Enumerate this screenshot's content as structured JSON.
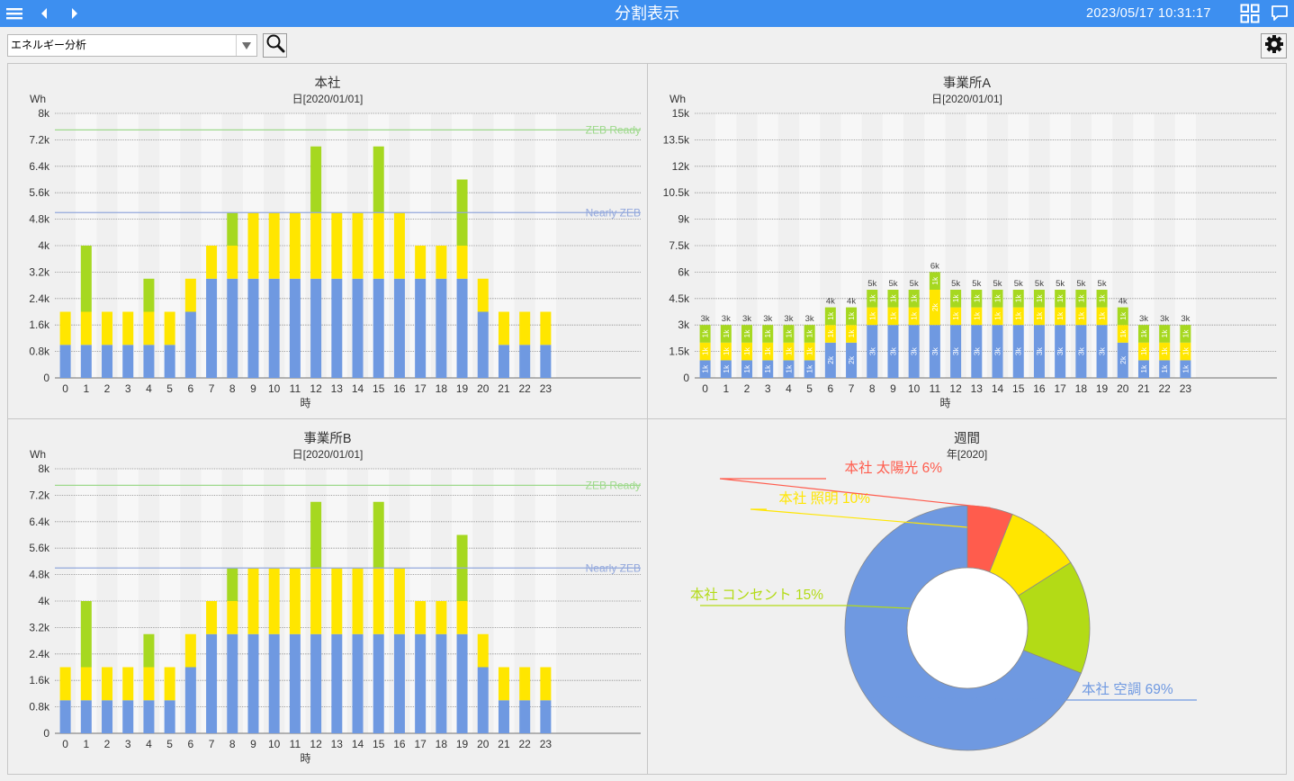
{
  "header": {
    "title": "分割表示",
    "datetime": "2023/05/17 10:31:17"
  },
  "toolbar": {
    "analysis_select_value": "エネルギー分析"
  },
  "icons": {
    "menu": "menu-icon",
    "prev": "chevron-left-icon",
    "next": "chevron-right-icon",
    "layout": "grid-layout-icon",
    "comment": "comment-icon",
    "search": "search-icon",
    "settings": "gear-icon",
    "dropdown": "caret-down-icon"
  },
  "colors": {
    "header_bg": "#3d8ff0",
    "blue": "#6f99e1",
    "yellow": "#ffe600",
    "green": "#a6d820",
    "red": "#ff5c4d",
    "zeb_ready": "#9ed98c",
    "nearly_zeb": "#93a8dc"
  },
  "panels": {
    "honsha": {
      "title": "本社",
      "subtitle": "日[2020/01/01]"
    },
    "office_a": {
      "title": "事業所A",
      "subtitle": "日[2020/01/01]"
    },
    "office_b": {
      "title": "事業所B",
      "subtitle": "日[2020/01/01]"
    },
    "weekly": {
      "title": "週間",
      "subtitle": "年[2020]"
    }
  },
  "chart_data": [
    {
      "id": "honsha",
      "type": "bar",
      "stacked": true,
      "title": "本社",
      "subtitle": "日[2020/01/01]",
      "ylabel": "Wh",
      "xlabel": "時",
      "categories": [
        "0",
        "1",
        "2",
        "3",
        "4",
        "5",
        "6",
        "7",
        "8",
        "9",
        "10",
        "11",
        "12",
        "13",
        "14",
        "15",
        "16",
        "17",
        "18",
        "19",
        "20",
        "21",
        "22",
        "23"
      ],
      "y_ticks": [
        "0",
        "0.8k",
        "1.6k",
        "2.4k",
        "3.2k",
        "4k",
        "4.8k",
        "5.6k",
        "6.4k",
        "7.2k",
        "8k"
      ],
      "ylim": [
        0,
        8000
      ],
      "series": [
        {
          "values": [
            1000,
            1000,
            1000,
            1000,
            1000,
            1000,
            2000,
            3000,
            3000,
            3000,
            3000,
            3000,
            3000,
            3000,
            3000,
            3000,
            3000,
            3000,
            3000,
            3000,
            2000,
            1000,
            1000,
            1000
          ]
        },
        {
          "values": [
            1000,
            1000,
            1000,
            1000,
            1000,
            1000,
            1000,
            1000,
            1000,
            2000,
            2000,
            2000,
            2000,
            2000,
            2000,
            2000,
            2000,
            1000,
            1000,
            1000,
            1000,
            1000,
            1000,
            1000
          ]
        },
        {
          "values": [
            0,
            2000,
            0,
            0,
            1000,
            0,
            0,
            0,
            1000,
            0,
            0,
            0,
            2000,
            0,
            0,
            2000,
            0,
            0,
            0,
            2000,
            0,
            0,
            0,
            0
          ]
        }
      ],
      "reference_lines": [
        {
          "label": "ZEB Ready",
          "value": 7500
        },
        {
          "label": "Nearly ZEB",
          "value": 5000
        }
      ],
      "grid": true
    },
    {
      "id": "office_a",
      "type": "bar",
      "stacked": true,
      "title": "事業所A",
      "subtitle": "日[2020/01/01]",
      "ylabel": "Wh",
      "xlabel": "時",
      "categories": [
        "0",
        "1",
        "2",
        "3",
        "4",
        "5",
        "6",
        "7",
        "8",
        "9",
        "10",
        "11",
        "12",
        "13",
        "14",
        "15",
        "16",
        "17",
        "18",
        "19",
        "20",
        "21",
        "22",
        "23"
      ],
      "y_ticks": [
        "0",
        "1.5k",
        "3k",
        "4.5k",
        "6k",
        "7.5k",
        "9k",
        "10.5k",
        "12k",
        "13.5k",
        "15k"
      ],
      "ylim": [
        0,
        15000
      ],
      "series": [
        {
          "values": [
            1000,
            1000,
            1000,
            1000,
            1000,
            1000,
            2000,
            2000,
            3000,
            3000,
            3000,
            3000,
            3000,
            3000,
            3000,
            3000,
            3000,
            3000,
            3000,
            3000,
            2000,
            1000,
            1000,
            1000
          ],
          "labels": [
            "1k",
            "1k",
            "1k",
            "1k",
            "1k",
            "1k",
            "2k",
            "2k",
            "3k",
            "3k",
            "3k",
            "3k",
            "3k",
            "3k",
            "3k",
            "3k",
            "3k",
            "3k",
            "3k",
            "3k",
            "2k",
            "1k",
            "1k",
            "1k"
          ]
        },
        {
          "values": [
            1000,
            1000,
            1000,
            1000,
            1000,
            1000,
            1000,
            1000,
            1000,
            1000,
            1000,
            2000,
            1000,
            1000,
            1000,
            1000,
            1000,
            1000,
            1000,
            1000,
            1000,
            1000,
            1000,
            1000
          ],
          "labels": [
            "1k",
            "1k",
            "1k",
            "1k",
            "1k",
            "1k",
            "1k",
            "1k",
            "1k",
            "1k",
            "1k",
            "2k",
            "1k",
            "1k",
            "1k",
            "1k",
            "1k",
            "1k",
            "1k",
            "1k",
            "1k",
            "1k",
            "1k",
            "1k"
          ]
        },
        {
          "values": [
            1000,
            1000,
            1000,
            1000,
            1000,
            1000,
            1000,
            1000,
            1000,
            1000,
            1000,
            1000,
            1000,
            1000,
            1000,
            1000,
            1000,
            1000,
            1000,
            1000,
            1000,
            1000,
            1000,
            1000
          ],
          "labels": [
            "1k",
            "1k",
            "1k",
            "1k",
            "1k",
            "1k",
            "1k",
            "1k",
            "1k",
            "1k",
            "1k",
            "1k",
            "1k",
            "1k",
            "1k",
            "1k",
            "1k",
            "1k",
            "1k",
            "1k",
            "1k",
            "1k",
            "1k",
            "1k"
          ]
        }
      ],
      "totals": [
        "3k",
        "3k",
        "3k",
        "3k",
        "3k",
        "3k",
        "4k",
        "4k",
        "5k",
        "5k",
        "5k",
        "6k",
        "5k",
        "5k",
        "5k",
        "5k",
        "5k",
        "5k",
        "5k",
        "5k",
        "4k",
        "3k",
        "3k",
        "3k"
      ],
      "grid": true
    },
    {
      "id": "office_b",
      "type": "bar",
      "stacked": true,
      "title": "事業所B",
      "subtitle": "日[2020/01/01]",
      "ylabel": "Wh",
      "xlabel": "時",
      "categories": [
        "0",
        "1",
        "2",
        "3",
        "4",
        "5",
        "6",
        "7",
        "8",
        "9",
        "10",
        "11",
        "12",
        "13",
        "14",
        "15",
        "16",
        "17",
        "18",
        "19",
        "20",
        "21",
        "22",
        "23"
      ],
      "y_ticks": [
        "0",
        "0.8k",
        "1.6k",
        "2.4k",
        "3.2k",
        "4k",
        "4.8k",
        "5.6k",
        "6.4k",
        "7.2k",
        "8k"
      ],
      "ylim": [
        0,
        8000
      ],
      "series": [
        {
          "values": [
            1000,
            1000,
            1000,
            1000,
            1000,
            1000,
            2000,
            3000,
            3000,
            3000,
            3000,
            3000,
            3000,
            3000,
            3000,
            3000,
            3000,
            3000,
            3000,
            3000,
            2000,
            1000,
            1000,
            1000
          ]
        },
        {
          "values": [
            1000,
            1000,
            1000,
            1000,
            1000,
            1000,
            1000,
            1000,
            1000,
            2000,
            2000,
            2000,
            2000,
            2000,
            2000,
            2000,
            2000,
            1000,
            1000,
            1000,
            1000,
            1000,
            1000,
            1000
          ]
        },
        {
          "values": [
            0,
            2000,
            0,
            0,
            1000,
            0,
            0,
            0,
            1000,
            0,
            0,
            0,
            2000,
            0,
            0,
            2000,
            0,
            0,
            0,
            2000,
            0,
            0,
            0,
            0
          ]
        }
      ],
      "reference_lines": [
        {
          "label": "ZEB Ready",
          "value": 7500
        },
        {
          "label": "Nearly ZEB",
          "value": 5000
        }
      ],
      "grid": true
    },
    {
      "id": "weekly",
      "type": "pie",
      "donut": true,
      "title": "週間",
      "subtitle": "年[2020]",
      "slices": [
        {
          "label": "本社 空調 69%",
          "value": 69,
          "color": "#6f99e1"
        },
        {
          "label": "本社 コンセント 15%",
          "value": 15,
          "color": "#b3db16"
        },
        {
          "label": "本社 照明 10%",
          "value": 10,
          "color": "#ffe600"
        },
        {
          "label": "本社 太陽光 6%",
          "value": 6,
          "color": "#ff5c4d"
        }
      ]
    }
  ]
}
